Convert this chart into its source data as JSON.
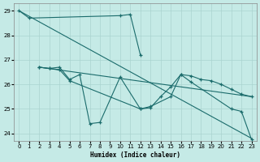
{
  "xlabel": "Humidex (Indice chaleur)",
  "background_color": "#c5eae6",
  "grid_color": "#aad4d0",
  "line_color": "#1a6b6b",
  "ylim": [
    23.7,
    29.3
  ],
  "yticks": [
    24,
    25,
    26,
    27,
    28,
    29
  ],
  "xlim": [
    -0.5,
    23.5
  ],
  "xticks": [
    0,
    1,
    2,
    3,
    4,
    5,
    6,
    7,
    8,
    9,
    10,
    11,
    12,
    13,
    14,
    15,
    16,
    17,
    18,
    19,
    20,
    21,
    22,
    23
  ],
  "series_A_x": [
    0,
    1,
    10,
    11,
    12
  ],
  "series_A_y": [
    29.0,
    28.7,
    28.8,
    28.85,
    27.2
  ],
  "series_B_x": [
    2,
    3,
    4,
    5,
    6,
    7,
    8,
    10,
    12,
    13,
    15,
    16,
    17,
    21,
    22,
    23
  ],
  "series_B_y": [
    26.7,
    26.65,
    26.7,
    26.2,
    26.4,
    24.4,
    24.45,
    26.3,
    25.0,
    25.1,
    25.5,
    26.4,
    26.1,
    25.0,
    24.9,
    23.75
  ],
  "series_C_x": [
    2,
    3,
    4,
    5,
    12,
    13,
    14,
    15,
    16,
    17,
    18,
    19,
    20,
    21,
    22,
    23
  ],
  "series_C_y": [
    26.7,
    26.65,
    26.6,
    26.15,
    25.0,
    25.05,
    25.5,
    25.9,
    26.4,
    26.35,
    26.2,
    26.15,
    26.0,
    25.8,
    25.6,
    25.5
  ],
  "trend1_x": [
    0,
    23
  ],
  "trend1_y": [
    29.0,
    23.8
  ],
  "trend2_x": [
    2,
    23
  ],
  "trend2_y": [
    26.7,
    25.5
  ]
}
